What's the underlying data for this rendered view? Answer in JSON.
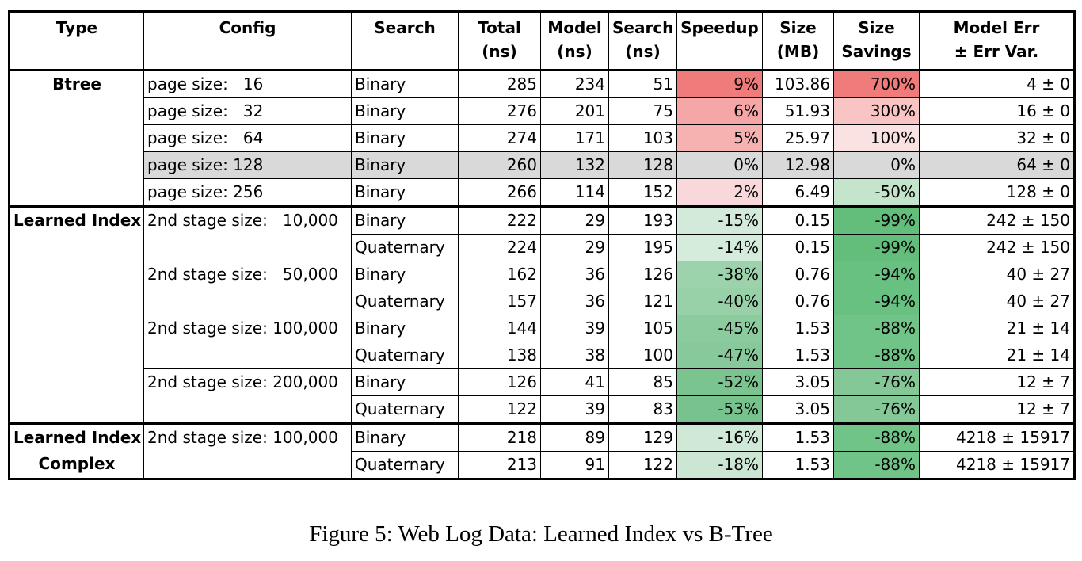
{
  "headers": [
    {
      "l1": "Type",
      "l2": ""
    },
    {
      "l1": "Config",
      "l2": ""
    },
    {
      "l1": "Search",
      "l2": ""
    },
    {
      "l1": "Total",
      "l2": "(ns)"
    },
    {
      "l1": "Model",
      "l2": "(ns)"
    },
    {
      "l1": "Search",
      "l2": "(ns)"
    },
    {
      "l1": "Speedup",
      "l2": ""
    },
    {
      "l1": "Size",
      "l2": "(MB)"
    },
    {
      "l1": "Size",
      "l2": "Savings"
    },
    {
      "l1": "Model Err",
      "l2": "± Err Var."
    }
  ],
  "groups": [
    {
      "type": [
        "Btree"
      ],
      "rows": [
        {
          "config": "page size:   16",
          "search": "Binary",
          "total": "285",
          "model": "234",
          "search_ns": "51",
          "speedup": "9%",
          "speedup_color": "#f07b7b",
          "size": "103.86",
          "savings": "700%",
          "savings_color": "#f07b7b",
          "err": "4 ± 0",
          "highlight": false
        },
        {
          "config": "page size:   32",
          "search": "Binary",
          "total": "276",
          "model": "201",
          "search_ns": "75",
          "speedup": "6%",
          "speedup_color": "#f5a6a6",
          "size": "51.93",
          "savings": "300%",
          "savings_color": "#f8c4c4",
          "err": "16 ± 0",
          "highlight": false
        },
        {
          "config": "page size:   64",
          "search": "Binary",
          "total": "274",
          "model": "171",
          "search_ns": "103",
          "speedup": "5%",
          "speedup_color": "#f6b1b1",
          "size": "25.97",
          "savings": "100%",
          "savings_color": "#fbe2e2",
          "err": "32 ± 0",
          "highlight": false
        },
        {
          "config": "page size: 128",
          "search": "Binary",
          "total": "260",
          "model": "132",
          "search_ns": "128",
          "speedup": "0%",
          "speedup_color": "",
          "size": "12.98",
          "savings": "0%",
          "savings_color": "",
          "err": "64 ± 0",
          "highlight": true
        },
        {
          "config": "page size: 256",
          "search": "Binary",
          "total": "266",
          "model": "114",
          "search_ns": "152",
          "speedup": "2%",
          "speedup_color": "#f9d8dc",
          "size": "6.49",
          "savings": "-50%",
          "savings_color": "#c4e4cb",
          "err": "128 ± 0",
          "highlight": false
        }
      ]
    },
    {
      "type": [
        "Learned Index"
      ],
      "rows": [
        {
          "config": "2nd stage size:   10,000",
          "search": "Binary",
          "total": "222",
          "model": "29",
          "search_ns": "193",
          "speedup": "-15%",
          "speedup_color": "#d3eada",
          "size": "0.15",
          "savings": "-99%",
          "savings_color": "#63be7b",
          "err": "242 ± 150",
          "highlight": false
        },
        {
          "config": "",
          "search": "Quaternary",
          "total": "224",
          "model": "29",
          "search_ns": "195",
          "speedup": "-14%",
          "speedup_color": "#d5ebdc",
          "size": "0.15",
          "savings": "-99%",
          "savings_color": "#63be7b",
          "err": "242 ± 150",
          "highlight": false
        },
        {
          "config": "2nd stage size:   50,000",
          "search": "Binary",
          "total": "162",
          "model": "36",
          "search_ns": "126",
          "speedup": "-38%",
          "speedup_color": "#9dd3ac",
          "size": "0.76",
          "savings": "-94%",
          "savings_color": "#69c181",
          "err": "40 ± 27",
          "highlight": false
        },
        {
          "config": "",
          "search": "Quaternary",
          "total": "157",
          "model": "36",
          "search_ns": "121",
          "speedup": "-40%",
          "speedup_color": "#98d1a8",
          "size": "0.76",
          "savings": "-94%",
          "savings_color": "#69c181",
          "err": "40 ± 27",
          "highlight": false
        },
        {
          "config": "2nd stage size: 100,000",
          "search": "Binary",
          "total": "144",
          "model": "39",
          "search_ns": "105",
          "speedup": "-45%",
          "speedup_color": "#8ccb9e",
          "size": "1.53",
          "savings": "-88%",
          "savings_color": "#70c487",
          "err": "21 ± 14",
          "highlight": false
        },
        {
          "config": "",
          "search": "Quaternary",
          "total": "138",
          "model": "38",
          "search_ns": "100",
          "speedup": "-47%",
          "speedup_color": "#87c99a",
          "size": "1.53",
          "savings": "-88%",
          "savings_color": "#70c487",
          "err": "21 ± 14",
          "highlight": false
        },
        {
          "config": "2nd stage size: 200,000",
          "search": "Binary",
          "total": "126",
          "model": "41",
          "search_ns": "85",
          "speedup": "-52%",
          "speedup_color": "#7bc490",
          "size": "3.05",
          "savings": "-76%",
          "savings_color": "#83c896",
          "err": "12 ± 7",
          "highlight": false
        },
        {
          "config": "",
          "search": "Quaternary",
          "total": "122",
          "model": "39",
          "search_ns": "83",
          "speedup": "-53%",
          "speedup_color": "#78c38d",
          "size": "3.05",
          "savings": "-76%",
          "savings_color": "#83c896",
          "err": "12 ± 7",
          "highlight": false
        }
      ]
    },
    {
      "type": [
        "Learned Index",
        "Complex"
      ],
      "rows": [
        {
          "config": "2nd stage size: 100,000",
          "search": "Binary",
          "total": "218",
          "model": "89",
          "search_ns": "129",
          "speedup": "-16%",
          "speedup_color": "#d0e9d7",
          "size": "1.53",
          "savings": "-88%",
          "savings_color": "#70c487",
          "err": "4218 ± 15917",
          "highlight": false
        },
        {
          "config": "",
          "search": "Quaternary",
          "total": "213",
          "model": "91",
          "search_ns": "122",
          "speedup": "-18%",
          "speedup_color": "#cbe7d3",
          "size": "1.53",
          "savings": "-88%",
          "savings_color": "#70c487",
          "err": "4218 ± 15917",
          "highlight": false
        }
      ]
    }
  ],
  "caption": "Figure 5: Web Log Data: Learned Index vs B-Tree"
}
